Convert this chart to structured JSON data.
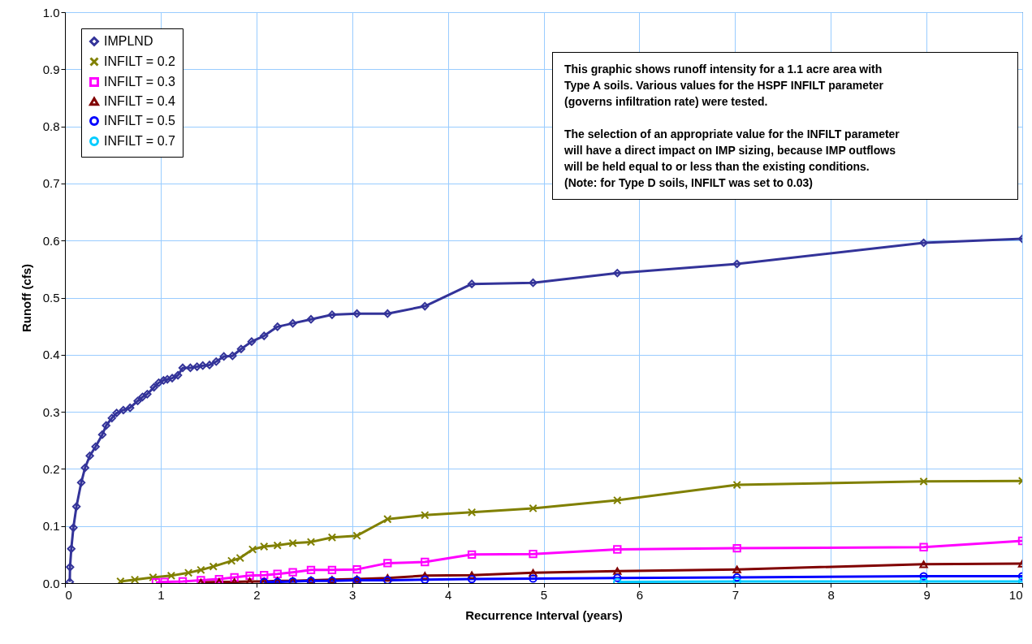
{
  "chart_data": {
    "type": "line",
    "xlabel": "Recurrence Interval (years)",
    "ylabel": "Runoff (cfs)",
    "xlim": [
      0,
      10
    ],
    "xticks": [
      0,
      1,
      2,
      3,
      4,
      5,
      6,
      7,
      8,
      9,
      10
    ],
    "ylim": [
      0,
      1
    ],
    "yticks": [
      {
        "value": 0,
        "label": "0.0"
      },
      {
        "value": 0.1,
        "label": "0.1"
      },
      {
        "value": 0.2,
        "label": "0.2"
      },
      {
        "value": 0.3,
        "label": "0.3"
      },
      {
        "value": 0.4,
        "label": "0.4"
      },
      {
        "value": 0.5,
        "label": "0.5"
      },
      {
        "value": 0.6,
        "label": "0.6"
      },
      {
        "value": 0.7,
        "label": "0.7"
      },
      {
        "value": 0.8,
        "label": "0.8"
      },
      {
        "value": 0.9,
        "label": "0.9"
      },
      {
        "value": 1,
        "label": "1.0"
      }
    ],
    "grid": true,
    "legend": "top left",
    "line_style": "solid",
    "annotations": [
      "This graphic shows runoff intensity for a 1.1 acre area with\nType A soils. Various values for the HSPF INFILT parameter\n(governs infiltration rate) were tested.",
      "The selection of an appropriate value for the INFILT parameter\nwill have a direct impact on IMP sizing, because IMP outflows\nwill be held equal to or less than the existing conditions.\n(Note: for Type D soils, INFILT was set to 0.03)"
    ],
    "series": [
      {
        "name": "IMPLND",
        "color": "#333399",
        "marker": "diamond",
        "x": [
          0.05,
          0.053,
          0.066,
          0.088,
          0.12,
          0.17,
          0.21,
          0.26,
          0.32,
          0.39,
          0.43,
          0.49,
          0.54,
          0.61,
          0.68,
          0.76,
          0.81,
          0.86,
          0.93,
          0.98,
          1.03,
          1.07,
          1.12,
          1.18,
          1.23,
          1.31,
          1.38,
          1.44,
          1.51,
          1.58,
          1.66,
          1.75,
          1.84,
          1.95,
          2.08,
          2.22,
          2.38,
          2.57,
          2.79,
          3.05,
          3.37,
          3.76,
          4.25,
          4.89,
          5.77,
          7.02,
          8.97,
          10
        ],
        "values": [
          0.002,
          0.028,
          0.06,
          0.097,
          0.134,
          0.176,
          0.202,
          0.223,
          0.239,
          0.26,
          0.276,
          0.289,
          0.298,
          0.303,
          0.307,
          0.319,
          0.326,
          0.331,
          0.343,
          0.351,
          0.355,
          0.357,
          0.359,
          0.364,
          0.377,
          0.377,
          0.379,
          0.381,
          0.382,
          0.388,
          0.397,
          0.398,
          0.41,
          0.423,
          0.433,
          0.449,
          0.455,
          0.462,
          0.47,
          0.472,
          0.472,
          0.485,
          0.524,
          0.526,
          0.543,
          0.559,
          0.596,
          0.603
        ]
      },
      {
        "name": "INFILT = 0.2",
        "color": "#808000",
        "marker": "cross",
        "x": [
          0.58,
          0.73,
          0.92,
          1.11,
          1.29,
          1.42,
          1.55,
          1.74,
          1.83,
          1.96,
          2.08,
          2.22,
          2.38,
          2.57,
          2.79,
          3.05,
          3.37,
          3.76,
          4.25,
          4.89,
          5.77,
          7.02,
          8.97,
          10
        ],
        "values": [
          0.003,
          0.006,
          0.01,
          0.013,
          0.018,
          0.023,
          0.029,
          0.039,
          0.044,
          0.059,
          0.064,
          0.066,
          0.07,
          0.072,
          0.08,
          0.083,
          0.112,
          0.119,
          0.124,
          0.131,
          0.145,
          0.172,
          0.178,
          0.179
        ]
      },
      {
        "name": "INFILT = 0.3",
        "color": "#ff00ff",
        "marker": "square",
        "x": [
          0.95,
          1.04,
          1.23,
          1.42,
          1.61,
          1.77,
          1.93,
          2.08,
          2.22,
          2.38,
          2.57,
          2.79,
          3.05,
          3.37,
          3.76,
          4.25,
          4.89,
          5.77,
          7.02,
          8.97,
          10
        ],
        "values": [
          0.001,
          0.002,
          0.003,
          0.005,
          0.007,
          0.01,
          0.013,
          0.014,
          0.016,
          0.019,
          0.023,
          0.023,
          0.024,
          0.035,
          0.037,
          0.05,
          0.051,
          0.059,
          0.061,
          0.063,
          0.074
        ]
      },
      {
        "name": "INFILT = 0.4",
        "color": "#800000",
        "marker": "triangle",
        "x": [
          1.42,
          1.61,
          1.77,
          1.93,
          2.08,
          2.22,
          2.38,
          2.57,
          2.79,
          3.05,
          3.37,
          3.76,
          4.25,
          4.89,
          5.77,
          7.02,
          8.97,
          10
        ],
        "values": [
          0.001,
          0.002,
          0.002,
          0.003,
          0.003,
          0.004,
          0.004,
          0.005,
          0.006,
          0.007,
          0.009,
          0.013,
          0.014,
          0.018,
          0.021,
          0.024,
          0.033,
          0.034
        ]
      },
      {
        "name": "INFILT = 0.5",
        "color": "#0000ff",
        "marker": "circle",
        "x": [
          2.08,
          2.22,
          2.38,
          2.57,
          2.79,
          3.05,
          3.37,
          3.76,
          4.25,
          4.89,
          5.77,
          7.02,
          8.97,
          10
        ],
        "values": [
          0.002,
          0.002,
          0.003,
          0.004,
          0.004,
          0.005,
          0.005,
          0.006,
          0.007,
          0.008,
          0.009,
          0.01,
          0.012,
          0.012
        ]
      },
      {
        "name": "INFILT = 0.7",
        "color": "#00ccff",
        "marker": "circle",
        "x": [
          5.77,
          7.02,
          8.97,
          10
        ],
        "values": [
          0.002,
          0.003,
          0.003,
          0.003
        ]
      }
    ]
  }
}
